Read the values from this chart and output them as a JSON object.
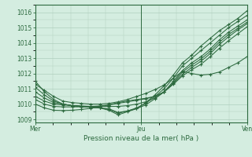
{
  "title": "Pression niveau de la mer( hPa )",
  "bg_color": "#d4ede0",
  "grid_color": "#b0cfbe",
  "line_color": "#2d6a3f",
  "ylim": [
    1008.8,
    1016.5
  ],
  "yticks": [
    1009,
    1010,
    1011,
    1012,
    1013,
    1014,
    1015,
    1016
  ],
  "xtick_labels": [
    "Mer",
    "Jeu",
    "Ven"
  ],
  "xtick_positions": [
    0,
    0.5,
    1.0
  ],
  "xmax": 1.0,
  "series": [
    [
      1011.5,
      1010.8,
      1010.3,
      1010.0,
      1009.9,
      1009.85,
      1009.8,
      1009.75,
      1009.6,
      1009.3,
      1009.5,
      1009.7,
      1010.1,
      1010.6,
      1011.2,
      1011.9,
      1012.7,
      1013.2,
      1013.8,
      1014.3,
      1014.8,
      1015.2,
      1015.6,
      1016.1
    ],
    [
      1011.1,
      1010.6,
      1010.2,
      1010.0,
      1009.9,
      1009.85,
      1009.8,
      1009.75,
      1009.65,
      1009.4,
      1009.55,
      1009.75,
      1010.05,
      1010.5,
      1011.0,
      1011.7,
      1012.5,
      1013.0,
      1013.5,
      1014.0,
      1014.5,
      1015.0,
      1015.4,
      1015.8
    ],
    [
      1010.8,
      1010.4,
      1010.1,
      1010.0,
      1009.9,
      1009.85,
      1009.8,
      1009.75,
      1009.7,
      1009.45,
      1009.55,
      1009.7,
      1009.95,
      1010.35,
      1010.8,
      1011.5,
      1012.2,
      1012.7,
      1013.1,
      1013.6,
      1014.2,
      1014.7,
      1015.1,
      1015.5
    ],
    [
      1010.5,
      1010.2,
      1010.0,
      1009.95,
      1009.9,
      1009.88,
      1009.85,
      1009.85,
      1009.85,
      1009.85,
      1009.9,
      1010.0,
      1010.15,
      1010.4,
      1010.8,
      1011.4,
      1012.1,
      1012.55,
      1012.95,
      1013.45,
      1014.05,
      1014.55,
      1014.95,
      1015.35
    ],
    [
      1010.3,
      1010.0,
      1009.85,
      1009.82,
      1009.82,
      1009.82,
      1009.85,
      1009.88,
      1009.95,
      1010.05,
      1010.15,
      1010.25,
      1010.35,
      1010.5,
      1010.8,
      1011.35,
      1011.95,
      1012.4,
      1012.8,
      1013.3,
      1013.9,
      1014.4,
      1014.85,
      1015.25
    ],
    [
      1010.0,
      1009.75,
      1009.6,
      1009.58,
      1009.6,
      1009.65,
      1009.72,
      1009.82,
      1009.95,
      1010.1,
      1010.2,
      1010.3,
      1010.38,
      1010.5,
      1010.8,
      1011.3,
      1011.85,
      1012.25,
      1012.6,
      1013.1,
      1013.65,
      1014.15,
      1014.6,
      1015.05
    ],
    [
      1011.3,
      1010.9,
      1010.5,
      1010.2,
      1010.1,
      1010.05,
      1010.0,
      1010.0,
      1010.05,
      1010.15,
      1010.3,
      1010.5,
      1010.7,
      1010.95,
      1011.25,
      1011.7,
      1012.15,
      1012.0,
      1011.9,
      1011.95,
      1012.1,
      1012.4,
      1012.7,
      1013.1
    ]
  ]
}
